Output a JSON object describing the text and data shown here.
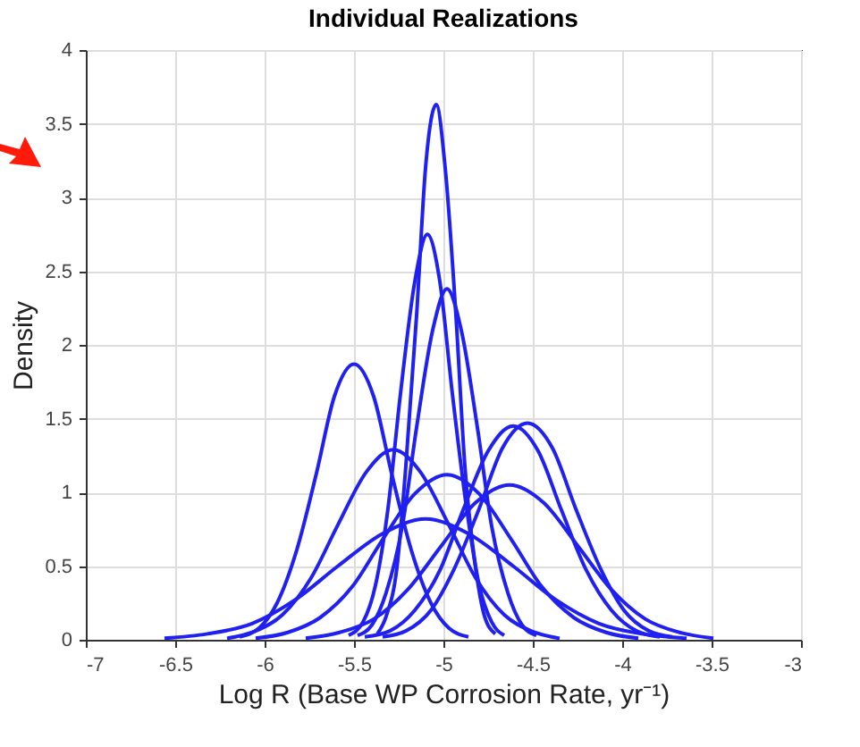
{
  "chart_data": {
    "type": "line",
    "title": "Individual Realizations",
    "xlabel": "Log R (Base WP Corrosion Rate, yr⁻¹)",
    "ylabel": "Density",
    "xlim": [
      -7,
      -3
    ],
    "xticks": [
      -7,
      -6.5,
      -6,
      -5.5,
      -5,
      -4.5,
      -4,
      -3.5,
      -3
    ],
    "ylim": [
      0,
      4
    ],
    "yticks": [
      0,
      0.5,
      1,
      1.5,
      2,
      2.5,
      3,
      3.5,
      4
    ],
    "grid": true,
    "line_style": "solid",
    "series": [
      {
        "color": "#2020f0",
        "x": [
          -5.37,
          -5.32,
          -5.26,
          -5.21,
          -5.15,
          -5.1,
          -5.04,
          -4.99,
          -4.93,
          -4.88,
          -4.82,
          -4.77,
          -4.71
        ],
        "values": [
          0.04,
          0.16,
          0.49,
          1.18,
          2.2,
          3.2,
          3.63,
          3.2,
          2.2,
          1.18,
          0.49,
          0.16,
          0.04
        ]
      },
      {
        "color": "#2020f0",
        "x": [
          -5.53,
          -5.45,
          -5.38,
          -5.31,
          -5.24,
          -5.16,
          -5.09,
          -5.02,
          -4.95,
          -4.87,
          -4.8,
          -4.73,
          -4.66
        ],
        "values": [
          0.03,
          0.12,
          0.37,
          0.89,
          1.67,
          2.43,
          2.75,
          2.43,
          1.67,
          0.89,
          0.37,
          0.12,
          0.03
        ]
      },
      {
        "color": "#2020f0",
        "x": [
          -5.48,
          -5.4,
          -5.32,
          -5.23,
          -5.15,
          -5.06,
          -4.98,
          -4.9,
          -4.81,
          -4.73,
          -4.64,
          -4.56,
          -4.48
        ],
        "values": [
          0.03,
          0.1,
          0.32,
          0.77,
          1.44,
          2.1,
          2.38,
          2.1,
          1.44,
          0.77,
          0.32,
          0.1,
          0.03
        ]
      },
      {
        "color": "#2020f0",
        "x": [
          -6.14,
          -6.03,
          -5.93,
          -5.82,
          -5.71,
          -5.61,
          -5.5,
          -5.39,
          -5.29,
          -5.18,
          -5.07,
          -4.97,
          -4.86
        ],
        "values": [
          0.02,
          0.08,
          0.25,
          0.61,
          1.13,
          1.65,
          1.87,
          1.65,
          1.13,
          0.61,
          0.25,
          0.08,
          0.02
        ]
      },
      {
        "color": "#2020f0",
        "x": [
          -6.21,
          -6.05,
          -5.9,
          -5.74,
          -5.59,
          -5.43,
          -5.28,
          -5.13,
          -4.97,
          -4.82,
          -4.66,
          -4.51,
          -4.35
        ],
        "values": [
          0.01,
          0.06,
          0.17,
          0.42,
          0.78,
          1.14,
          1.29,
          1.14,
          0.78,
          0.42,
          0.17,
          0.06,
          0.01
        ]
      },
      {
        "color": "#2020f0",
        "x": [
          -6.05,
          -5.87,
          -5.69,
          -5.51,
          -5.34,
          -5.16,
          -4.98,
          -4.8,
          -4.62,
          -4.45,
          -4.27,
          -4.09,
          -3.91
        ],
        "values": [
          0.01,
          0.05,
          0.15,
          0.36,
          0.68,
          0.99,
          1.12,
          0.99,
          0.68,
          0.36,
          0.15,
          0.05,
          0.01
        ]
      },
      {
        "color": "#2020f0",
        "x": [
          -6.56,
          -6.32,
          -6.07,
          -5.83,
          -5.59,
          -5.34,
          -5.1,
          -4.86,
          -4.61,
          -4.37,
          -4.13,
          -3.89,
          -3.64
        ],
        "values": [
          0.01,
          0.04,
          0.11,
          0.27,
          0.5,
          0.72,
          0.82,
          0.72,
          0.5,
          0.27,
          0.11,
          0.04,
          0.01
        ]
      },
      {
        "color": "#2020f0",
        "x": [
          -5.44,
          -5.3,
          -5.16,
          -5.02,
          -4.89,
          -4.75,
          -4.61,
          -4.47,
          -4.34,
          -4.2,
          -4.06,
          -3.92,
          -3.79
        ],
        "values": [
          0.02,
          0.06,
          0.2,
          0.47,
          0.88,
          1.28,
          1.45,
          1.28,
          0.88,
          0.47,
          0.2,
          0.06,
          0.02
        ]
      },
      {
        "color": "#2020f0",
        "x": [
          -5.34,
          -5.21,
          -5.07,
          -4.94,
          -4.8,
          -4.67,
          -4.53,
          -4.39,
          -4.26,
          -4.12,
          -3.99,
          -3.85,
          -3.72
        ],
        "values": [
          0.02,
          0.06,
          0.2,
          0.48,
          0.89,
          1.3,
          1.47,
          1.3,
          0.89,
          0.48,
          0.2,
          0.06,
          0.02
        ]
      },
      {
        "color": "#2020f0",
        "x": [
          -5.77,
          -5.58,
          -5.39,
          -5.2,
          -5.01,
          -4.82,
          -4.63,
          -4.44,
          -4.25,
          -4.06,
          -3.87,
          -3.68,
          -3.49
        ],
        "values": [
          0.01,
          0.05,
          0.14,
          0.34,
          0.64,
          0.93,
          1.05,
          0.93,
          0.64,
          0.34,
          0.14,
          0.05,
          0.01
        ]
      }
    ]
  }
}
